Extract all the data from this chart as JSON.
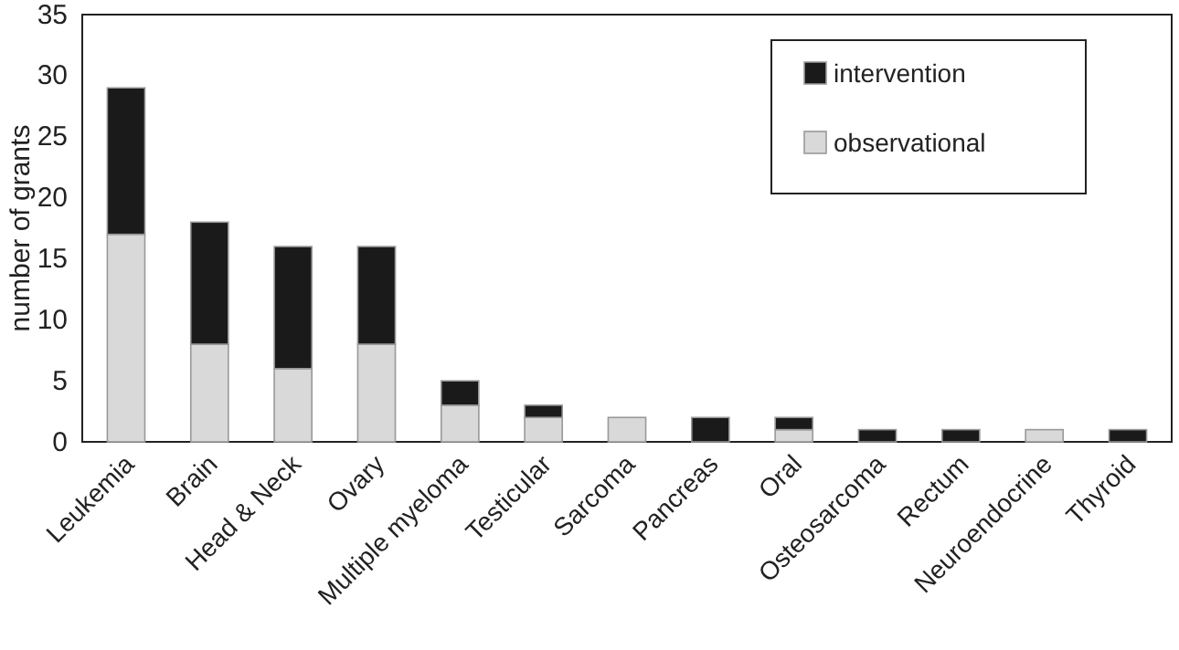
{
  "chart_data": {
    "type": "bar",
    "stacked": true,
    "ylabel": "number of grants",
    "categories": [
      "Leukemia",
      "Brain",
      "Head & Neck",
      "Ovary",
      "Multiple myeloma",
      "Testicular",
      "Sarcoma",
      "Pancreas",
      "Oral",
      "Osteosarcoma",
      "Rectum",
      "Neuroendocrine",
      "Thyroid"
    ],
    "series": [
      {
        "name": "observational",
        "color": "#d9d9d9",
        "values": [
          17,
          8,
          6,
          8,
          3,
          2,
          2,
          0,
          1,
          0,
          0,
          1,
          0
        ]
      },
      {
        "name": "intervention",
        "color": "#1a1a1a",
        "values": [
          12,
          10,
          10,
          8,
          2,
          1,
          0,
          2,
          1,
          1,
          1,
          0,
          1
        ]
      }
    ],
    "ylim": [
      0,
      35
    ],
    "yticks": [
      0,
      5,
      10,
      15,
      20,
      25,
      30,
      35
    ],
    "grid": false,
    "legend": "top right"
  }
}
